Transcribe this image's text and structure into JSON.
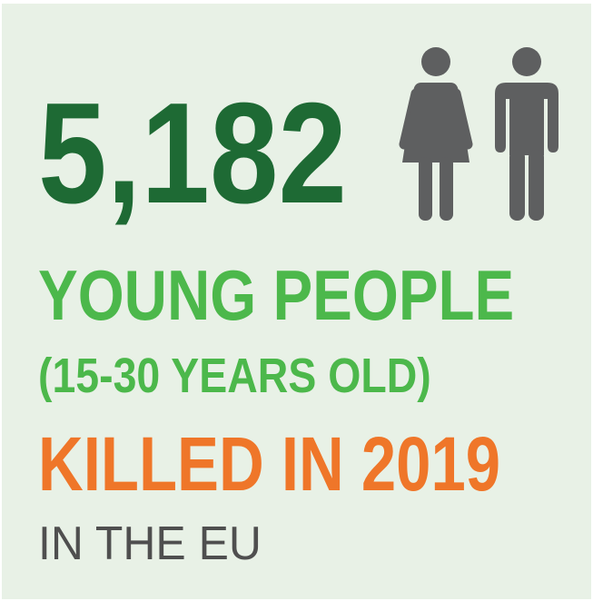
{
  "stat": {
    "number": "5,182",
    "line1": "YOUNG PEOPLE",
    "line2": "(15-30 YEARS OLD)",
    "line3": "KILLED IN 2019",
    "line4": "IN THE EU"
  },
  "icons": [
    "woman-icon",
    "man-icon"
  ],
  "colors": {
    "background": "#e8f1e6",
    "dark_green": "#1e6a34",
    "light_green": "#4cb84b",
    "orange": "#ef7629",
    "grey": "#4f4f4f",
    "icon_grey": "#5e5f60"
  }
}
